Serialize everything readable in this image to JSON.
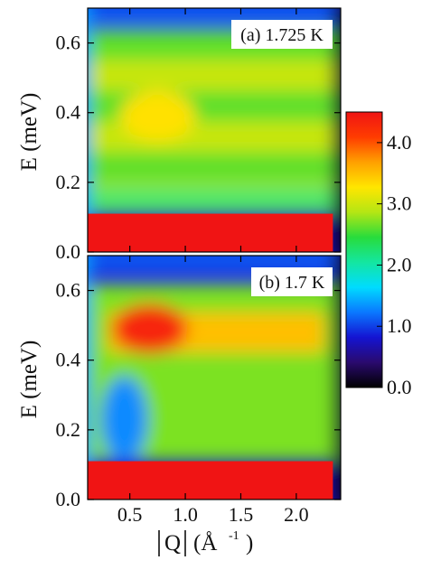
{
  "chart_data": [
    {
      "type": "heatmap",
      "panel_label": "(a) 1.725 K",
      "xlabel": "",
      "ylabel": "E (meV)",
      "xlim": [
        0.12,
        2.4
      ],
      "ylim": [
        0.0,
        0.7
      ],
      "x_ticks": [
        0.5,
        1.0,
        1.5,
        2.0
      ],
      "y_ticks": [
        0.0,
        0.2,
        0.4,
        0.6
      ],
      "y_tick_labels": [
        "0.0",
        "0.2",
        "0.4",
        "0.6"
      ],
      "elastic_band_meV": [
        0.0,
        0.11
      ],
      "q_coverage_inverse_angstrom": [
        0.12,
        2.33
      ],
      "intensity_features": [
        {
          "description": "broad continuum",
          "energy_range_meV": [
            0.11,
            0.64
          ],
          "intensity_range": [
            2.3,
            3.2
          ]
        },
        {
          "description": "weak bright patches",
          "q_center": 0.75,
          "energy_meV": 0.39,
          "intensity": 3.3
        }
      ]
    },
    {
      "type": "heatmap",
      "panel_label": "(b) 1.7 K",
      "xlabel": "|Q| (Å-1)",
      "ylabel": "E (meV)",
      "xlim": [
        0.12,
        2.4
      ],
      "ylim": [
        0.0,
        0.7
      ],
      "x_ticks": [
        0.5,
        1.0,
        1.5,
        2.0
      ],
      "x_tick_labels": [
        "0.5",
        "1.0",
        "1.5",
        "2.0"
      ],
      "y_ticks": [
        0.0,
        0.2,
        0.4,
        0.6
      ],
      "y_tick_labels": [
        "0.0",
        "0.2",
        "0.4",
        "0.6"
      ],
      "elastic_band_meV": [
        0.0,
        0.11
      ],
      "q_coverage_inverse_angstrom": [
        0.12,
        2.33
      ],
      "intensity_features": [
        {
          "description": "flat band",
          "energy_meV": 0.48,
          "q_range": [
            0.3,
            2.25
          ],
          "intensity": 3.5
        },
        {
          "description": "band maximum",
          "q_center": 0.68,
          "energy_meV": 0.49,
          "intensity": 4.3
        },
        {
          "description": "low-intensity pocket",
          "q_center": 0.45,
          "energy_meV": 0.23,
          "intensity": 1.3
        }
      ]
    }
  ],
  "colorbar": {
    "range": [
      0.0,
      4.5
    ],
    "ticks": [
      0.0,
      1.0,
      2.0,
      3.0,
      4.0
    ],
    "tick_labels": [
      "0.0",
      "1.0",
      "2.0",
      "3.0",
      "4.0"
    ],
    "colors": [
      "#000000",
      "#2a0a6e",
      "#1414d2",
      "#0a78ff",
      "#00dcff",
      "#14e6a0",
      "#28dc3c",
      "#b4e614",
      "#ffe600",
      "#ffa000",
      "#ff3c00",
      "#f01414"
    ]
  },
  "axes_labels": {
    "a_ylabel": "E (meV)",
    "b_ylabel": "E (meV)",
    "xlabel_q": "Q",
    "xlabel_unit": "(Å",
    "xlabel_exp": "-1",
    "xlabel_close": ")"
  }
}
